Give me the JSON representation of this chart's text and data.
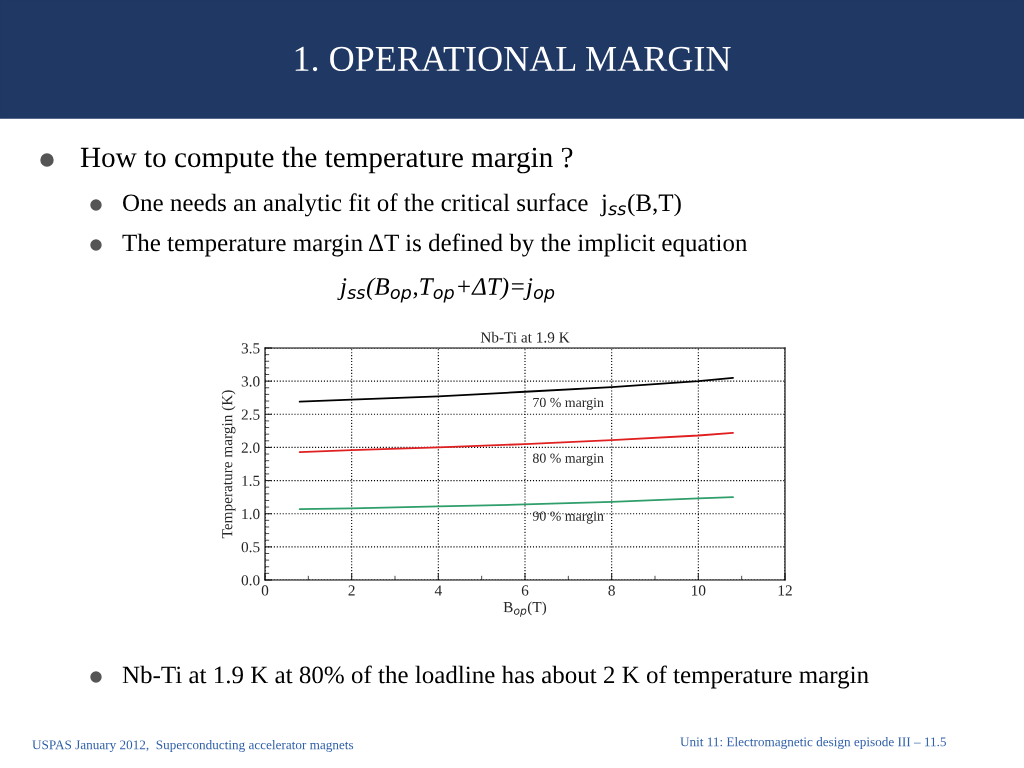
{
  "chart_data": {
    "type": "line",
    "title": "1. OPERATIONAL MARGIN",
    "subtitle": "Nb-Ti at 1.9 K",
    "xlabel": "B$_{op}$(T)",
    "ylabel": "Temperature margin (K)",
    "x": [
      0.8,
      2,
      4,
      6,
      8,
      10,
      10.8
    ],
    "series": [
      {
        "color": "#000000",
        "values": [
          2.69,
          2.72,
          2.77,
          2.84,
          2.91,
          3.0,
          3.05
        ]
      },
      {
        "color": "#e02020",
        "values": [
          1.93,
          1.96,
          2.0,
          2.05,
          2.11,
          2.18,
          2.22
        ]
      },
      {
        "color": "#2e9e6a",
        "values": [
          1.07,
          1.08,
          1.11,
          1.14,
          1.18,
          1.23,
          1.25
        ]
      }
    ],
    "xlim": [
      0,
      12
    ],
    "xticks": [
      0,
      2,
      4,
      6,
      8,
      10,
      12
    ],
    "ylim": [
      0,
      3.5
    ],
    "yticks": [
      {
        "value": 0,
        "label": "0.0"
      },
      0.5,
      {
        "value": 1,
        "label": "1.0"
      },
      1.5,
      {
        "value": 2,
        "label": "2.0"
      },
      2.5,
      {
        "value": 3,
        "label": "3.0"
      },
      3.5
    ],
    "grid": true,
    "legend": false,
    "marker": "none",
    "line_style": "solid",
    "annotations": [
      "How to compute the temperature margin ?",
      "One needs an analytic fit of the critical surface  j$_{ss}$(B,T)",
      "The temperature margin ΔT is defined by the implicit equation",
      "j$_{ss}$(B$_{op}$,T$_{op}$+ΔT)=j$_{op}$",
      "Nb-Ti at 1.9 K at 80% of the loadline has about 2 K of temperature margin",
      "USPAS January 2012,  Superconducting accelerator magnets",
      "Unit 11: Electromagnetic design episode III – 11.5",
      "70 % margin",
      "80 % margin",
      "90 % margin"
    ]
  }
}
